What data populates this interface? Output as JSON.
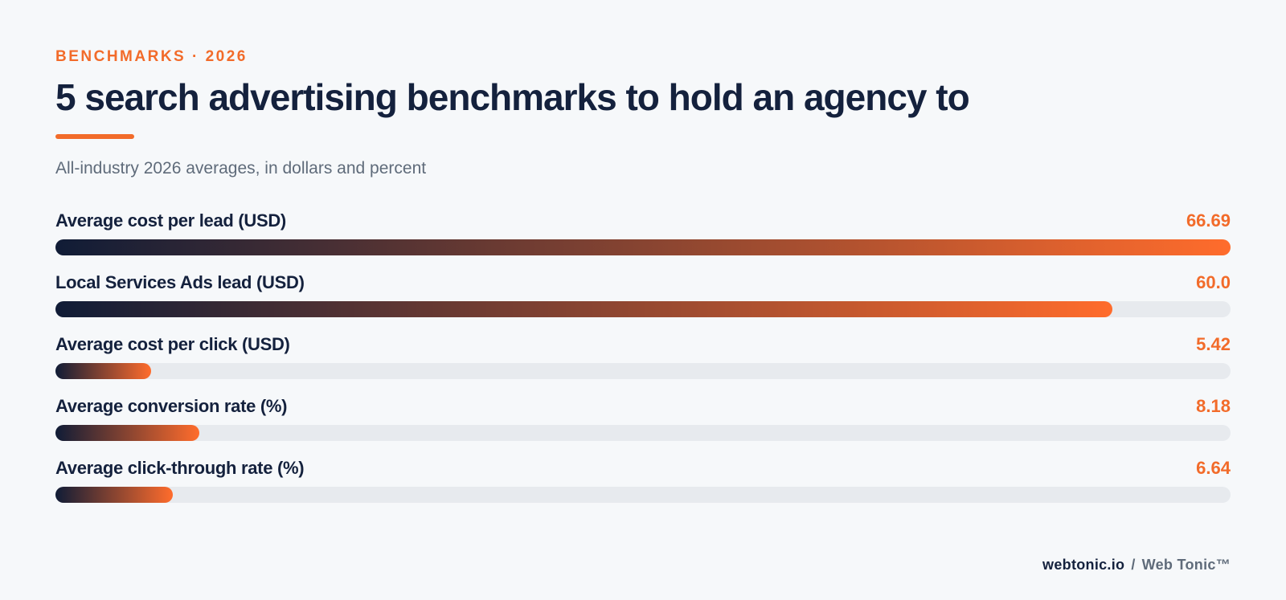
{
  "header": {
    "eyebrow": "BENCHMARKS · 2026",
    "title": "5 search advertising benchmarks to hold an agency to",
    "subtitle": "All-industry 2026 averages, in dollars and percent"
  },
  "chart_data": {
    "type": "bar",
    "orientation": "horizontal",
    "title": "5 search advertising benchmarks to hold an agency to",
    "subtitle": "All-industry 2026 averages, in dollars and percent",
    "categories": [
      "Average cost per lead (USD)",
      "Local Services Ads lead (USD)",
      "Average cost per click (USD)",
      "Average conversion rate (%)",
      "Average click-through rate (%)"
    ],
    "values": [
      66.69,
      60.0,
      5.42,
      8.18,
      6.64
    ],
    "value_labels": [
      "66.69",
      "60.0",
      "5.42",
      "8.18",
      "6.64"
    ],
    "xlim": [
      0,
      66.69
    ],
    "grid": false,
    "legend": "none"
  },
  "footer": {
    "site": "webtonic.io",
    "separator": "/",
    "brand": "Web Tonic™"
  },
  "colors": {
    "accent": "#f26b2a",
    "bar_start": "#101c36",
    "bar_end": "#ff6c2c",
    "track": "#e7eaee",
    "text_primary": "#14213d",
    "text_muted": "#5f6b7a",
    "background": "#f6f8fa"
  }
}
